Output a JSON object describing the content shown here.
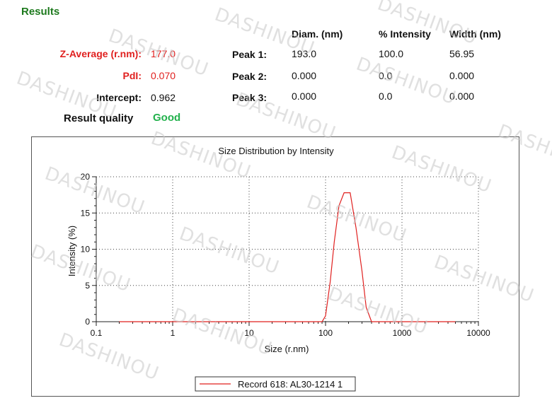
{
  "results": {
    "title": "Results",
    "z_average_label": "Z-Average (r.nm):",
    "z_average_value": "177.0",
    "pdi_label": "PdI:",
    "pdi_value": "0.070",
    "intercept_label": "Intercept:",
    "intercept_value": "0.962",
    "quality_label": "Result quality",
    "quality_value": "Good"
  },
  "peaks": {
    "headers": [
      "Diam. (nm)",
      "% Intensity",
      "Width (nm)"
    ],
    "rows": [
      {
        "label": "Peak 1:",
        "diam": "193.0",
        "intensity": "100.0",
        "width": "56.95"
      },
      {
        "label": "Peak 2:",
        "diam": "0.000",
        "intensity": "0.0",
        "width": "0.000"
      },
      {
        "label": "Peak 3:",
        "diam": "0.000",
        "intensity": "0.0",
        "width": "0.000"
      }
    ]
  },
  "watermark": "DASHINOU",
  "chart_data": {
    "type": "line",
    "title": "Size Distribution by Intensity",
    "xlabel": "Size (r.nm)",
    "ylabel": "Intensity (%)",
    "xscale": "log",
    "xlim": [
      0.1,
      10000
    ],
    "ylim": [
      0,
      20
    ],
    "x_ticks": [
      "0.1",
      "1",
      "10",
      "100",
      "1000",
      "10000"
    ],
    "y_ticks": [
      "0",
      "5",
      "10",
      "15",
      "20"
    ],
    "grid": true,
    "legend": "bottom-center",
    "series": [
      {
        "name": "Record 618: AL30-1214 1",
        "color": "#e0201f",
        "x": [
          0.2,
          0.5,
          1,
          5,
          10,
          50,
          90,
          100,
          115,
          130,
          150,
          175,
          210,
          250,
          300,
          340,
          400,
          5000
        ],
        "y": [
          0,
          0,
          0,
          0,
          0,
          0,
          0,
          0.8,
          5.5,
          11,
          16,
          17.8,
          17.8,
          13,
          7,
          2,
          0,
          0
        ]
      }
    ]
  }
}
